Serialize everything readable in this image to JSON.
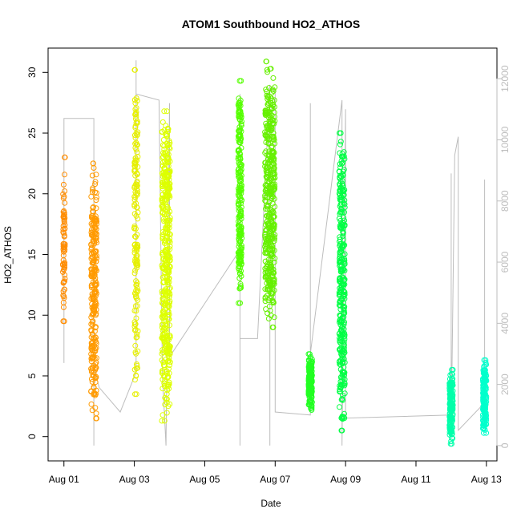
{
  "chart_data": {
    "type": "scatter",
    "title": "ATOM1 Southbound HO2_ATHOS",
    "xlabel": "Date",
    "ylabel": "HO2_ATHOS",
    "x_ticks": [
      "Aug 01",
      "Aug 03",
      "Aug 05",
      "Aug 07",
      "Aug 09",
      "Aug 11",
      "Aug 13"
    ],
    "x_tick_days": [
      1,
      3,
      5,
      7,
      9,
      11,
      13
    ],
    "xlim": [
      0.55,
      13.3
    ],
    "ylim": [
      -2,
      32
    ],
    "y_ticks": [
      0,
      5,
      10,
      15,
      20,
      25,
      30
    ],
    "y2lim": [
      -500,
      13000
    ],
    "y2_ticks": [
      0,
      2000,
      4000,
      6000,
      8000,
      10000,
      12000
    ],
    "grid": false,
    "legend": "none",
    "point_clusters": [
      {
        "day": 1.0,
        "spread": 0.03,
        "ymin": 9.5,
        "ymax": 23.0,
        "color": "#ff8c00",
        "n": 70
      },
      {
        "day": 1.85,
        "spread": 0.08,
        "ymin": 1.5,
        "ymax": 22.5,
        "color": "#ff9a00",
        "n": 260
      },
      {
        "day": 3.05,
        "spread": 0.05,
        "ymin": 3.5,
        "ymax": 30.2,
        "color": "#e6f000",
        "n": 160
      },
      {
        "day": 3.9,
        "spread": 0.12,
        "ymin": 1.3,
        "ymax": 26.8,
        "color": "#ddff00",
        "n": 420
      },
      {
        "day": 6.0,
        "spread": 0.05,
        "ymin": 11.0,
        "ymax": 29.3,
        "color": "#55ff00",
        "n": 220
      },
      {
        "day": 6.85,
        "spread": 0.14,
        "ymin": 9.0,
        "ymax": 30.9,
        "color": "#66f000",
        "n": 420
      },
      {
        "day": 8.0,
        "spread": 0.05,
        "ymin": 2.2,
        "ymax": 6.8,
        "color": "#22ff22",
        "n": 170
      },
      {
        "day": 8.9,
        "spread": 0.08,
        "ymin": 0.5,
        "ymax": 25.0,
        "color": "#00ff44",
        "n": 320
      },
      {
        "day": 12.0,
        "spread": 0.05,
        "ymin": -0.6,
        "ymax": 5.5,
        "color": "#00ffaa",
        "n": 160
      },
      {
        "day": 12.95,
        "spread": 0.05,
        "ymin": 0.3,
        "ymax": 6.3,
        "color": "#00ffcc",
        "n": 160
      }
    ],
    "secondary_series": {
      "color": "#bdbdbd",
      "axis": "right",
      "steps": [
        [
          1.0,
          10600
        ],
        [
          1.0,
          2700
        ],
        [
          1.0,
          10700
        ],
        [
          1.85,
          10700
        ],
        [
          1.85,
          0
        ],
        [
          1.85,
          10700
        ],
        [
          1.85,
          2600
        ],
        [
          2.0,
          1900
        ],
        [
          2.6,
          1100
        ],
        [
          3.05,
          2400
        ],
        [
          3.05,
          11100
        ],
        [
          3.05,
          12600
        ],
        [
          3.05,
          11500
        ],
        [
          3.7,
          11300
        ],
        [
          3.8,
          2300
        ],
        [
          3.9,
          0
        ],
        [
          4.0,
          11200
        ],
        [
          4.0,
          2900
        ],
        [
          6.0,
          6400
        ],
        [
          6.0,
          0
        ],
        [
          6.0,
          11500
        ],
        [
          6.0,
          3500
        ],
        [
          6.5,
          3500
        ],
        [
          6.85,
          11800
        ],
        [
          6.85,
          0
        ],
        [
          6.85,
          11700
        ],
        [
          7.0,
          11600
        ],
        [
          7.0,
          1100
        ],
        [
          8.0,
          1000
        ],
        [
          8.0,
          11200
        ],
        [
          8.0,
          3000
        ],
        [
          8.9,
          11300
        ],
        [
          8.9,
          0
        ],
        [
          9.0,
          11000
        ],
        [
          9.0,
          900
        ],
        [
          12.0,
          1000
        ],
        [
          12.0,
          8900
        ],
        [
          12.0,
          450
        ],
        [
          12.1,
          9500
        ],
        [
          12.2,
          10100
        ],
        [
          12.2,
          500
        ],
        [
          12.95,
          1400
        ],
        [
          12.95,
          8700
        ],
        [
          12.95,
          950
        ],
        [
          13.0,
          600
        ]
      ]
    }
  }
}
